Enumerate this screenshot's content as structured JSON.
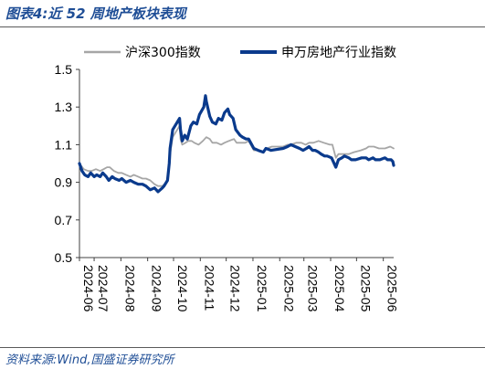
{
  "figure_title": "图表4:近 52 周地产板块表现",
  "source": "资料来源:Wind,国盛证券研究所",
  "chart_data": {
    "type": "line",
    "title": "",
    "xlabel": "",
    "ylabel": "",
    "ylim": [
      0.5,
      1.5
    ],
    "yticks": [
      "0.5",
      "0.7",
      "0.9",
      "1.1",
      "1.3",
      "1.5"
    ],
    "xlim": [
      "2024-06-14",
      "2025-06-13"
    ],
    "xticks": [
      "2024-06",
      "2024-07",
      "2024-08",
      "2024-09",
      "2024-10",
      "2024-11",
      "2024-12",
      "2025-01",
      "2025-02",
      "2025-03",
      "2025-04",
      "2025-05",
      "2025-06"
    ],
    "grid": false,
    "legend_position": "top",
    "series": [
      {
        "name": "沪深300指数",
        "color": "#a6a6a6",
        "points": [
          [
            "2024-06-14",
            1.0
          ],
          [
            "2024-06-19",
            0.97
          ],
          [
            "2024-06-24",
            0.96
          ],
          [
            "2024-06-28",
            0.96
          ],
          [
            "2024-07-03",
            0.97
          ],
          [
            "2024-07-08",
            0.96
          ],
          [
            "2024-07-12",
            0.97
          ],
          [
            "2024-07-16",
            0.98
          ],
          [
            "2024-07-19",
            0.98
          ],
          [
            "2024-07-24",
            0.96
          ],
          [
            "2024-07-29",
            0.95
          ],
          [
            "2024-08-02",
            0.95
          ],
          [
            "2024-08-07",
            0.94
          ],
          [
            "2024-08-12",
            0.93
          ],
          [
            "2024-08-16",
            0.94
          ],
          [
            "2024-08-21",
            0.93
          ],
          [
            "2024-08-26",
            0.92
          ],
          [
            "2024-08-30",
            0.92
          ],
          [
            "2024-09-04",
            0.91
          ],
          [
            "2024-09-09",
            0.89
          ],
          [
            "2024-09-13",
            0.88
          ],
          [
            "2024-09-18",
            0.88
          ],
          [
            "2024-09-23",
            0.9
          ],
          [
            "2024-09-25",
            0.96
          ],
          [
            "2024-09-27",
            1.05
          ],
          [
            "2024-09-30",
            1.14
          ],
          [
            "2024-10-08",
            1.2
          ],
          [
            "2024-10-09",
            1.13
          ],
          [
            "2024-10-11",
            1.1
          ],
          [
            "2024-10-15",
            1.11
          ],
          [
            "2024-10-18",
            1.12
          ],
          [
            "2024-10-22",
            1.12
          ],
          [
            "2024-10-25",
            1.11
          ],
          [
            "2024-10-30",
            1.1
          ],
          [
            "2024-11-04",
            1.12
          ],
          [
            "2024-11-08",
            1.14
          ],
          [
            "2024-11-12",
            1.13
          ],
          [
            "2024-11-15",
            1.11
          ],
          [
            "2024-11-20",
            1.11
          ],
          [
            "2024-11-25",
            1.1
          ],
          [
            "2024-11-29",
            1.11
          ],
          [
            "2024-12-04",
            1.12
          ],
          [
            "2024-12-10",
            1.13
          ],
          [
            "2024-12-13",
            1.11
          ],
          [
            "2024-12-18",
            1.11
          ],
          [
            "2024-12-23",
            1.11
          ],
          [
            "2024-12-27",
            1.12
          ],
          [
            "2025-01-02",
            1.07
          ],
          [
            "2025-01-07",
            1.07
          ],
          [
            "2025-01-13",
            1.06
          ],
          [
            "2025-01-17",
            1.08
          ],
          [
            "2025-01-23",
            1.09
          ],
          [
            "2025-02-05",
            1.09
          ],
          [
            "2025-02-10",
            1.1
          ],
          [
            "2025-02-14",
            1.1
          ],
          [
            "2025-02-20",
            1.11
          ],
          [
            "2025-02-26",
            1.11
          ],
          [
            "2025-03-03",
            1.1
          ],
          [
            "2025-03-07",
            1.11
          ],
          [
            "2025-03-12",
            1.11
          ],
          [
            "2025-03-18",
            1.12
          ],
          [
            "2025-03-24",
            1.11
          ],
          [
            "2025-03-31",
            1.1
          ],
          [
            "2025-04-03",
            1.1
          ],
          [
            "2025-04-07",
            1.03
          ],
          [
            "2025-04-10",
            1.05
          ],
          [
            "2025-04-16",
            1.05
          ],
          [
            "2025-04-22",
            1.05
          ],
          [
            "2025-04-28",
            1.06
          ],
          [
            "2025-05-06",
            1.07
          ],
          [
            "2025-05-12",
            1.08
          ],
          [
            "2025-05-15",
            1.09
          ],
          [
            "2025-05-21",
            1.09
          ],
          [
            "2025-05-27",
            1.08
          ],
          [
            "2025-06-03",
            1.08
          ],
          [
            "2025-06-09",
            1.09
          ],
          [
            "2025-06-13",
            1.08
          ]
        ]
      },
      {
        "name": "申万房地产行业指数",
        "color": "#0a3a8c",
        "points": [
          [
            "2024-06-14",
            1.0
          ],
          [
            "2024-06-17",
            0.96
          ],
          [
            "2024-06-20",
            0.94
          ],
          [
            "2024-06-24",
            0.93
          ],
          [
            "2024-06-27",
            0.95
          ],
          [
            "2024-07-01",
            0.93
          ],
          [
            "2024-07-04",
            0.94
          ],
          [
            "2024-07-08",
            0.93
          ],
          [
            "2024-07-11",
            0.95
          ],
          [
            "2024-07-15",
            0.93
          ],
          [
            "2024-07-18",
            0.91
          ],
          [
            "2024-07-22",
            0.93
          ],
          [
            "2024-07-25",
            0.92
          ],
          [
            "2024-07-30",
            0.91
          ],
          [
            "2024-08-02",
            0.92
          ],
          [
            "2024-08-07",
            0.9
          ],
          [
            "2024-08-12",
            0.91
          ],
          [
            "2024-08-16",
            0.9
          ],
          [
            "2024-08-21",
            0.89
          ],
          [
            "2024-08-26",
            0.89
          ],
          [
            "2024-08-30",
            0.88
          ],
          [
            "2024-09-04",
            0.86
          ],
          [
            "2024-09-09",
            0.87
          ],
          [
            "2024-09-13",
            0.85
          ],
          [
            "2024-09-18",
            0.87
          ],
          [
            "2024-09-20",
            0.88
          ],
          [
            "2024-09-24",
            0.91
          ],
          [
            "2024-09-26",
            1.0
          ],
          [
            "2024-09-27",
            1.08
          ],
          [
            "2024-09-30",
            1.18
          ],
          [
            "2024-10-08",
            1.24
          ],
          [
            "2024-10-09",
            1.18
          ],
          [
            "2024-10-11",
            1.12
          ],
          [
            "2024-10-14",
            1.15
          ],
          [
            "2024-10-17",
            1.13
          ],
          [
            "2024-10-21",
            1.2
          ],
          [
            "2024-10-24",
            1.22
          ],
          [
            "2024-10-28",
            1.21
          ],
          [
            "2024-10-31",
            1.26
          ],
          [
            "2024-11-05",
            1.3
          ],
          [
            "2024-11-07",
            1.36
          ],
          [
            "2024-11-08",
            1.33
          ],
          [
            "2024-11-12",
            1.25
          ],
          [
            "2024-11-15",
            1.22
          ],
          [
            "2024-11-19",
            1.21
          ],
          [
            "2024-11-22",
            1.24
          ],
          [
            "2024-11-26",
            1.23
          ],
          [
            "2024-11-29",
            1.27
          ],
          [
            "2024-12-03",
            1.29
          ],
          [
            "2024-12-05",
            1.26
          ],
          [
            "2024-12-09",
            1.24
          ],
          [
            "2024-12-12",
            1.18
          ],
          [
            "2024-12-17",
            1.15
          ],
          [
            "2024-12-20",
            1.14
          ],
          [
            "2024-12-24",
            1.13
          ],
          [
            "2024-12-27",
            1.13
          ],
          [
            "2025-01-02",
            1.08
          ],
          [
            "2025-01-07",
            1.07
          ],
          [
            "2025-01-13",
            1.06
          ],
          [
            "2025-01-16",
            1.08
          ],
          [
            "2025-01-22",
            1.07
          ],
          [
            "2025-02-05",
            1.08
          ],
          [
            "2025-02-10",
            1.09
          ],
          [
            "2025-02-14",
            1.1
          ],
          [
            "2025-02-19",
            1.09
          ],
          [
            "2025-02-24",
            1.08
          ],
          [
            "2025-02-28",
            1.07
          ],
          [
            "2025-03-04",
            1.08
          ],
          [
            "2025-03-07",
            1.09
          ],
          [
            "2025-03-11",
            1.07
          ],
          [
            "2025-03-14",
            1.07
          ],
          [
            "2025-03-18",
            1.06
          ],
          [
            "2025-03-21",
            1.05
          ],
          [
            "2025-03-25",
            1.04
          ],
          [
            "2025-03-28",
            1.04
          ],
          [
            "2025-04-02",
            1.03
          ],
          [
            "2025-04-07",
            0.98
          ],
          [
            "2025-04-10",
            1.02
          ],
          [
            "2025-04-14",
            1.03
          ],
          [
            "2025-04-17",
            1.04
          ],
          [
            "2025-04-22",
            1.03
          ],
          [
            "2025-04-25",
            1.02
          ],
          [
            "2025-04-30",
            1.02
          ],
          [
            "2025-05-07",
            1.03
          ],
          [
            "2025-05-12",
            1.03
          ],
          [
            "2025-05-15",
            1.02
          ],
          [
            "2025-05-20",
            1.03
          ],
          [
            "2025-05-23",
            1.02
          ],
          [
            "2025-05-28",
            1.02
          ],
          [
            "2025-06-03",
            1.03
          ],
          [
            "2025-06-06",
            1.02
          ],
          [
            "2025-06-10",
            1.02
          ],
          [
            "2025-06-12",
            1.01
          ],
          [
            "2025-06-13",
            0.99
          ]
        ]
      }
    ]
  }
}
